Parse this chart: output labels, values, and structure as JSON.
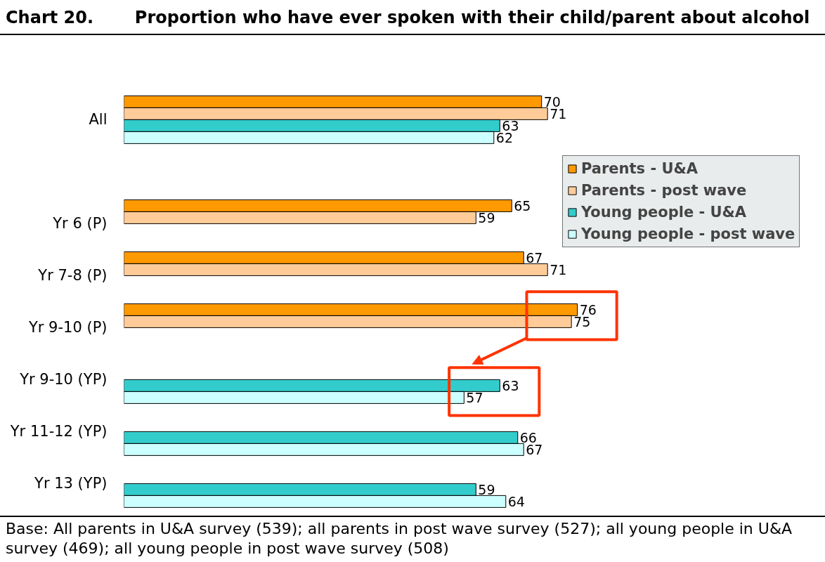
{
  "chart_data": {
    "type": "bar",
    "orientation": "horizontal",
    "title": "Chart 20.\tProportion who have ever spoken with their child/parent about alcohol",
    "categories": [
      "All",
      null,
      "Yr 6 (P)",
      "Yr 7-8 (P)",
      "Yr 9-10 (P)",
      "Yr 9-10 (YP)",
      "Yr 11-12 (YP)",
      "Yr 13 (YP)"
    ],
    "series": [
      {
        "name": "Parents - U&A",
        "color": "#ff9900",
        "values": [
          70,
          null,
          65,
          67,
          76,
          null,
          null,
          null
        ]
      },
      {
        "name": "Parents - post wave",
        "color": "#ffcc99",
        "values": [
          71,
          null,
          59,
          71,
          75,
          null,
          null,
          null
        ]
      },
      {
        "name": "Young people - U&A",
        "color": "#33cccc",
        "values": [
          63,
          null,
          null,
          null,
          null,
          63,
          66,
          59
        ]
      },
      {
        "name": "Young people - post wave",
        "color": "#ccffff",
        "values": [
          62,
          null,
          null,
          null,
          null,
          57,
          67,
          64
        ]
      }
    ],
    "tick_labels": "y",
    "data_labels": true,
    "legend": "top right",
    "annotations": [
      "Base: All parents in U&A survey (539); all parents in post wave survey (527); all young people in U&A survey (469); all young people in post wave survey (508)"
    ]
  }
}
